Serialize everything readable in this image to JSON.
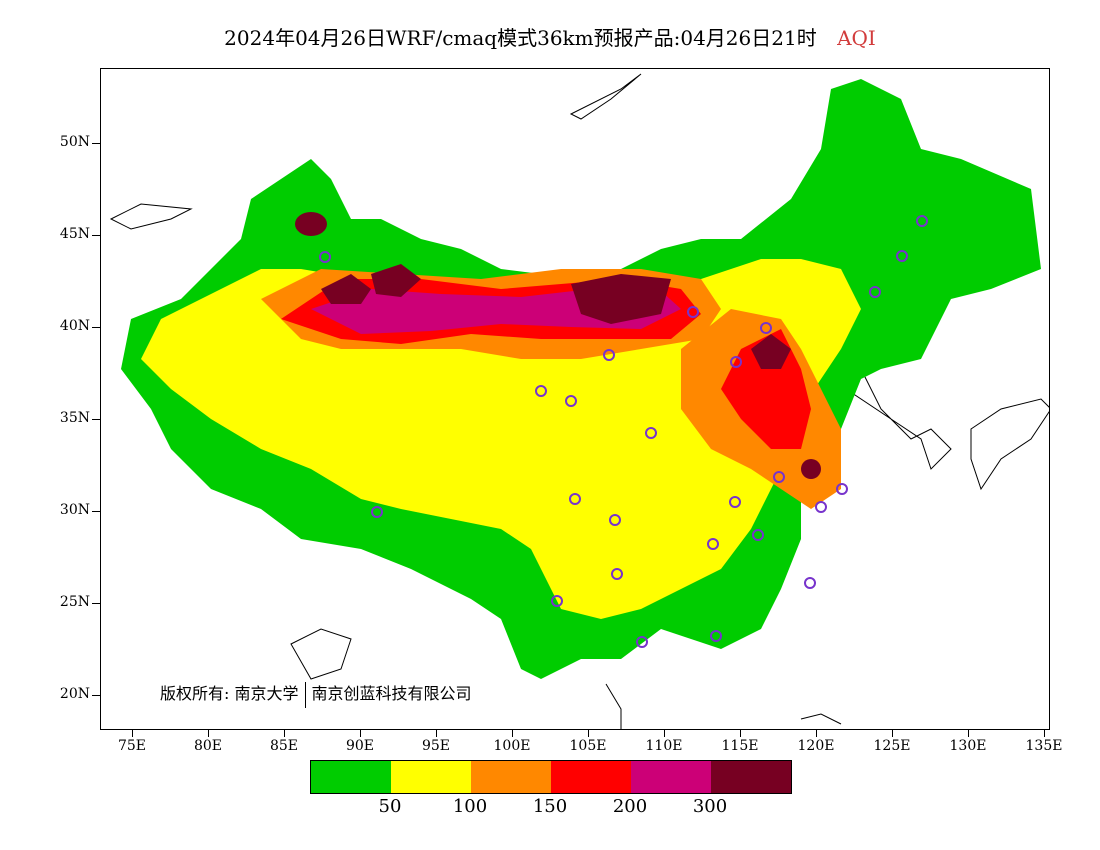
{
  "title": {
    "main": "2024年04月26日WRF/cmaq模式36km预报产品:04月26日21时",
    "variable": "AQI"
  },
  "axes": {
    "y_labels": [
      "50N",
      "45N",
      "40N",
      "35N",
      "30N",
      "25N",
      "20N"
    ],
    "x_labels": [
      "75E",
      "80E",
      "85E",
      "90E",
      "95E",
      "100E",
      "105E",
      "110E",
      "115E",
      "120E",
      "125E",
      "130E",
      "135E"
    ]
  },
  "copyright": {
    "label": "版权所有:",
    "org1": "南京大学",
    "org2": "南京创蓝科技有限公司"
  },
  "legend": {
    "colors": [
      "#00cc00",
      "#ffff00",
      "#ff8800",
      "#ff0000",
      "#cc0077",
      "#770022"
    ],
    "thresholds": [
      "50",
      "100",
      "150",
      "200",
      "300"
    ]
  },
  "colors": {
    "good": "#00cc00",
    "moderate": "#ffff00",
    "unhealthy_sensitive": "#ff8800",
    "unhealthy": "#ff0000",
    "very_unhealthy": "#cc0077",
    "hazardous": "#770022",
    "station_marker": "#7733cc"
  }
}
